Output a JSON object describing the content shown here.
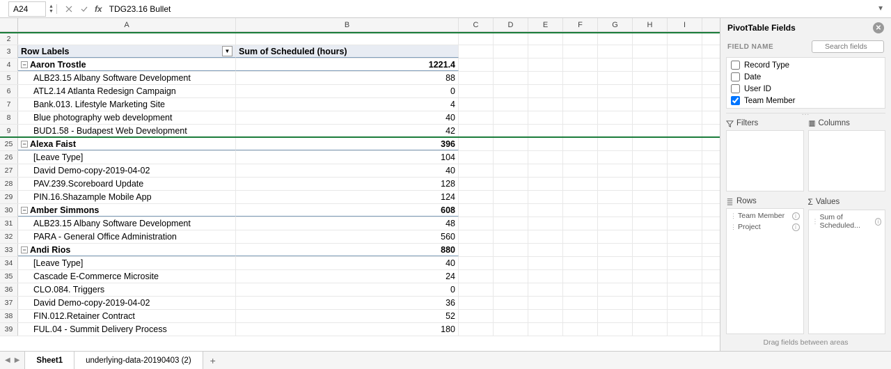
{
  "formulaBar": {
    "nameBoxValue": "A24",
    "formulaLabel": "fx",
    "formulaText": "TDG23.16 Bullet"
  },
  "columns": [
    "A",
    "B",
    "C",
    "D",
    "E",
    "F",
    "G",
    "H",
    "I"
  ],
  "headerRow": {
    "labelA": "Row Labels",
    "labelB": "Sum of Scheduled (hours)"
  },
  "rows": [
    {
      "n": "2",
      "a": "",
      "b": "",
      "type": "blank"
    },
    {
      "n": "3",
      "type": "header"
    },
    {
      "n": "4",
      "a": "Aaron Trostle",
      "b": "1221.4",
      "type": "group"
    },
    {
      "n": "5",
      "a": "ALB23.15 Albany Software Development",
      "b": "88",
      "type": "item"
    },
    {
      "n": "6",
      "a": "ATL2.14 Atlanta Redesign Campaign",
      "b": "0",
      "type": "item"
    },
    {
      "n": "7",
      "a": "Bank.013. Lifestyle Marketing Site",
      "b": "4",
      "type": "item"
    },
    {
      "n": "8",
      "a": "Blue photography web development",
      "b": "40",
      "type": "item"
    },
    {
      "n": "9",
      "a": "BUD1.58 - Budapest Web Development",
      "b": "42",
      "type": "item",
      "greenBottom": true
    },
    {
      "n": "25",
      "a": "Alexa Faist",
      "b": "396",
      "type": "group"
    },
    {
      "n": "26",
      "a": "[Leave Type]",
      "b": "104",
      "type": "item"
    },
    {
      "n": "27",
      "a": "David Demo-copy-2019-04-02",
      "b": "40",
      "type": "item"
    },
    {
      "n": "28",
      "a": "PAV.239.Scoreboard Update",
      "b": "128",
      "type": "item"
    },
    {
      "n": "29",
      "a": "PIN.16.Shazample Mobile App",
      "b": "124",
      "type": "item"
    },
    {
      "n": "30",
      "a": "Amber Simmons",
      "b": "608",
      "type": "group"
    },
    {
      "n": "31",
      "a": "ALB23.15 Albany Software Development",
      "b": "48",
      "type": "item"
    },
    {
      "n": "32",
      "a": "PARA - General Office Administration",
      "b": "560",
      "type": "item"
    },
    {
      "n": "33",
      "a": "Andi Rios",
      "b": "880",
      "type": "group"
    },
    {
      "n": "34",
      "a": "[Leave Type]",
      "b": "40",
      "type": "item"
    },
    {
      "n": "35",
      "a": "Cascade E-Commerce Microsite",
      "b": "24",
      "type": "item"
    },
    {
      "n": "36",
      "a": "CLO.084. Triggers",
      "b": "0",
      "type": "item"
    },
    {
      "n": "37",
      "a": "David Demo-copy-2019-04-02",
      "b": "36",
      "type": "item"
    },
    {
      "n": "38",
      "a": "FIN.012.Retainer Contract",
      "b": "52",
      "type": "item"
    },
    {
      "n": "39",
      "a": "FUL.04 - Summit Delivery Process",
      "b": "180",
      "type": "item"
    }
  ],
  "pivot": {
    "title": "PivotTable Fields",
    "fieldNameLabel": "FIELD NAME",
    "searchPlaceholder": "Search fields",
    "fields": [
      {
        "label": "Record Type",
        "checked": false
      },
      {
        "label": "Date",
        "checked": false
      },
      {
        "label": "User ID",
        "checked": false
      },
      {
        "label": "Team Member",
        "checked": true
      }
    ],
    "areas": {
      "filtersLabel": "Filters",
      "columnsLabel": "Columns",
      "rowsLabel": "Rows",
      "valuesLabel": "Values",
      "rows": [
        "Team Member",
        "Project"
      ],
      "values": [
        "Sum of Scheduled..."
      ]
    },
    "footer": "Drag fields between areas"
  },
  "tabs": {
    "active": "Sheet1",
    "others": [
      "underlying-data-20190403 (2)"
    ]
  }
}
